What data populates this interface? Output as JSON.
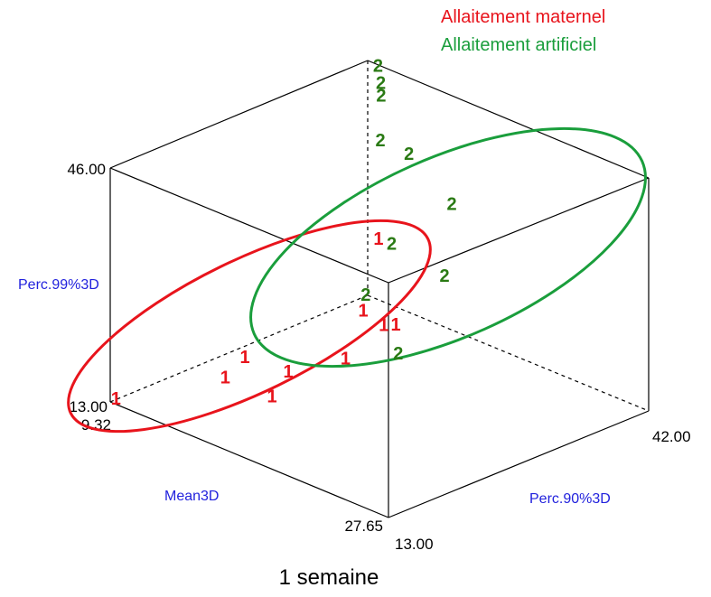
{
  "caption": "1 semaine",
  "colors": {
    "group1": "#e8141c",
    "group2": "#1a9e3c",
    "points2": "#2a7a14",
    "axis_labels": "#2222dd"
  },
  "chart_data": {
    "type": "scatter",
    "projection": "3d-box",
    "legend_position": "top-right",
    "axes": {
      "x": {
        "label": "Mean3D",
        "range": [
          9.32,
          27.65
        ],
        "tick_labels": [
          "9.32",
          "27.65"
        ]
      },
      "y": {
        "label": "Perc.90%3D",
        "range": [
          13.0,
          42.0
        ],
        "tick_labels": [
          "13.00",
          "42.00"
        ]
      },
      "z": {
        "label": "Perc.99%3D",
        "range": [
          13.0,
          46.0
        ],
        "tick_labels": [
          "13.00",
          "46.00"
        ]
      }
    },
    "series": [
      {
        "name": "Allaitement maternel",
        "marker": "1",
        "points": [
          [
            9.4,
            13.5,
            13.3
          ],
          [
            13.8,
            20.5,
            19.5
          ],
          [
            12.8,
            20.0,
            16.0
          ],
          [
            15.9,
            21.8,
            18.6
          ],
          [
            15.3,
            21.0,
            15.0
          ],
          [
            17.8,
            25.0,
            20.5
          ],
          [
            17.1,
            28.2,
            25.0
          ],
          [
            17.4,
            30.0,
            22.3
          ],
          [
            17.6,
            31.0,
            22.0
          ],
          [
            15.0,
            33.5,
            30.5
          ]
        ]
      },
      {
        "name": "Allaitement artificiel",
        "marker": "2",
        "points": [
          [
            16.5,
            29.5,
            26.0
          ],
          [
            18.0,
            30.6,
            18.5
          ],
          [
            15.4,
            34.3,
            29.7
          ],
          [
            17.6,
            36.5,
            26.0
          ],
          [
            12.5,
            38.0,
            39.8
          ],
          [
            13.5,
            39.5,
            38.0
          ],
          [
            16.5,
            39.2,
            33.8
          ],
          [
            10.5,
            41.5,
            42.5
          ],
          [
            10.3,
            41.8,
            44.0
          ],
          [
            10.0,
            42.0,
            46.0
          ]
        ]
      }
    ],
    "ellipses": [
      {
        "series": "Allaitement maternel"
      },
      {
        "series": "Allaitement artificiel"
      }
    ]
  }
}
